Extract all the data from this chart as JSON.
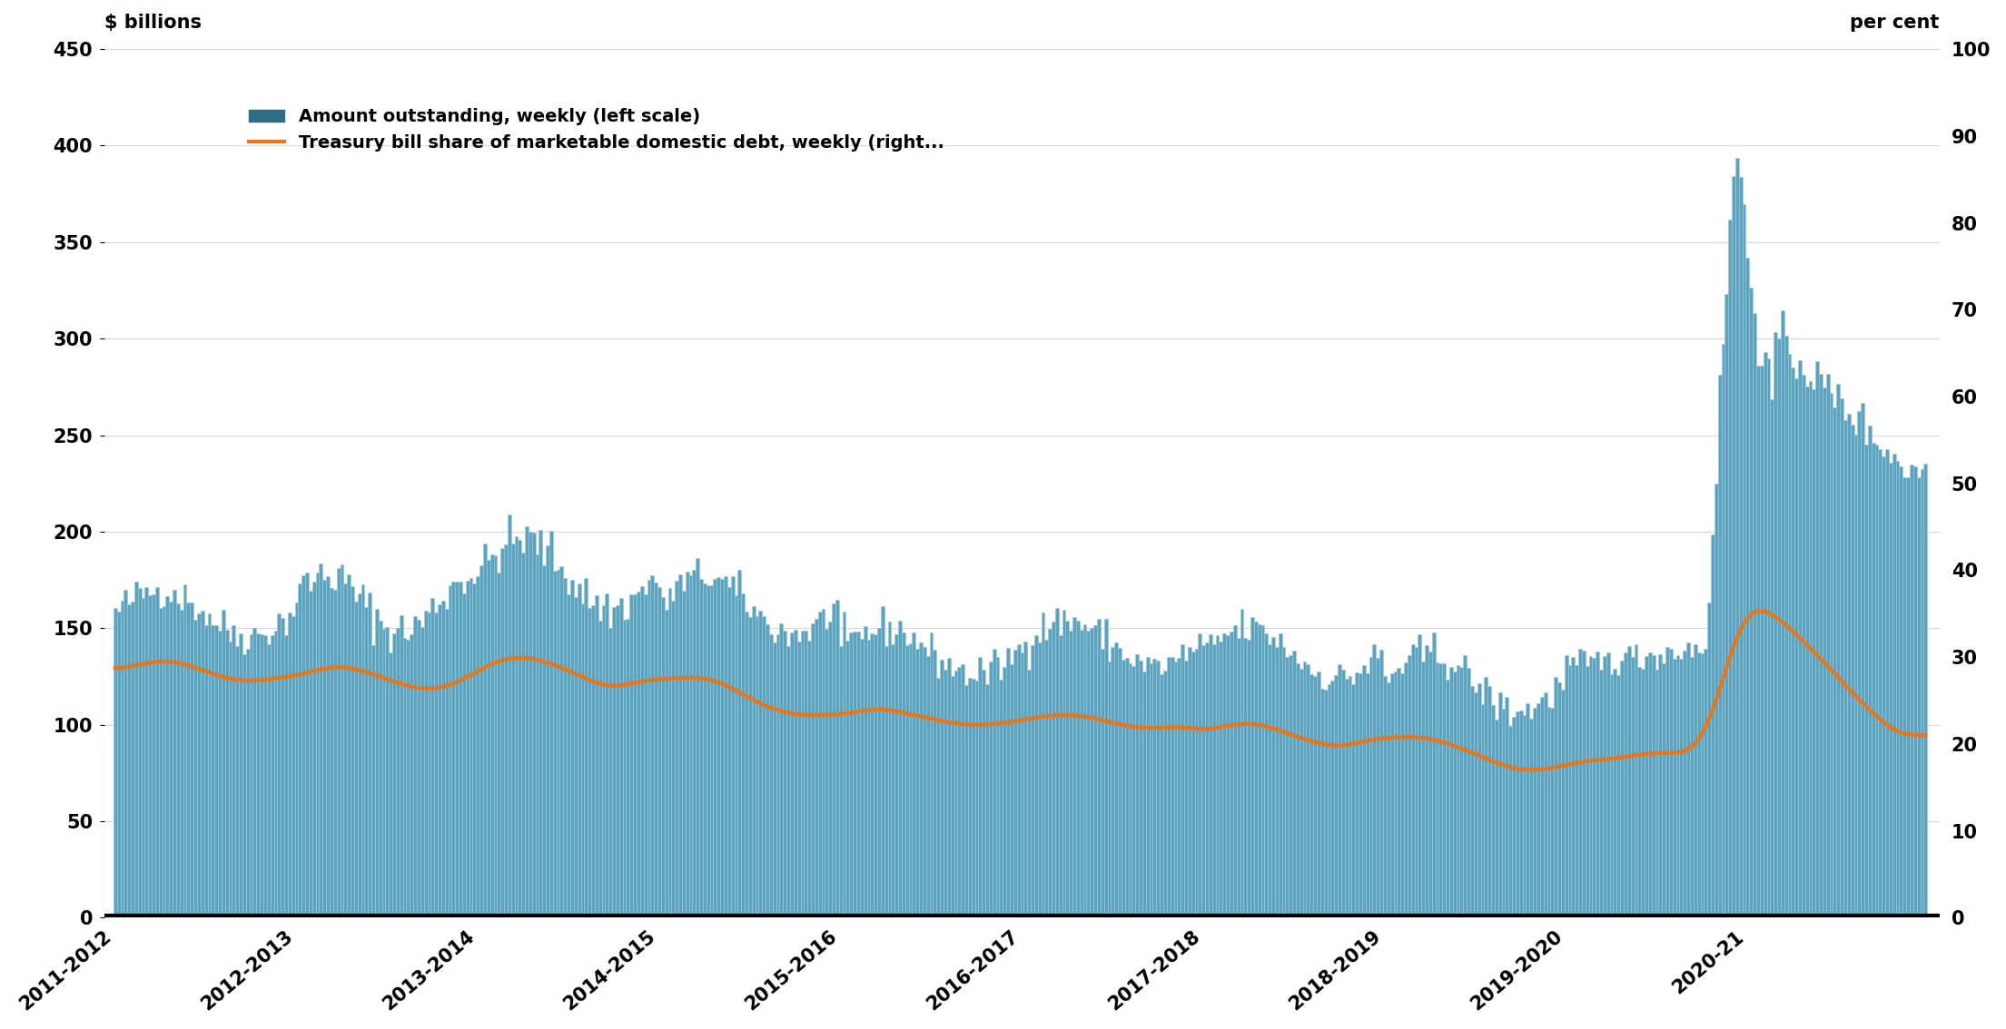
{
  "ylabel_left": "$ billions",
  "ylabel_right": "per cent",
  "ylim_left": [
    0,
    450
  ],
  "ylim_right": [
    0,
    100
  ],
  "yticks_left": [
    0,
    50,
    100,
    150,
    200,
    250,
    300,
    350,
    400,
    450
  ],
  "yticks_right": [
    0,
    10,
    20,
    30,
    40,
    50,
    60,
    70,
    80,
    90,
    100
  ],
  "bar_color": "#5ba3be",
  "bar_edge_color": "#a0c8d8",
  "line_color": "#e8761a",
  "line_width": 3.0,
  "legend_labels": [
    "Amount outstanding, weekly (left scale)",
    "Treasury bill share of marketable domestic debt, weekly (right..."
  ],
  "legend_bar_color": "#2e6e87",
  "background_color": "#ffffff",
  "grid_color": "#d8d8d8",
  "x_tick_labels": [
    "2011-2012",
    "2012-2013",
    "2013-2014",
    "2014-2015",
    "2015-2016",
    "2016-2017",
    "2017-2018",
    "2018-2019",
    "2019-2020",
    "2020-21"
  ],
  "bottom_line_color": "#000000",
  "label_fontsize": 15,
  "tick_fontsize": 15,
  "legend_fontsize": 14
}
